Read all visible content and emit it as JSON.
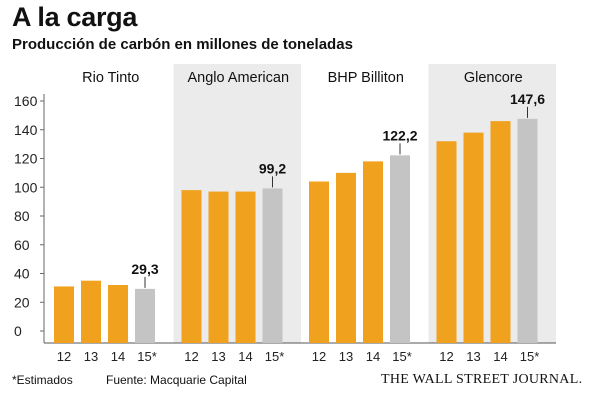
{
  "title": "A la carga",
  "subtitle": "Producción de carbón en millones de toneladas",
  "footnote": "*Estimados",
  "source": "Fuente: Macquarie Capital",
  "publisher": "THE WALL STREET JOURNAL.",
  "colors": {
    "actual": "#f0a11e",
    "estimate": "#c4c4c4",
    "panel_shade": "#ebebeb",
    "axis": "#666666"
  },
  "chart_data": {
    "type": "bar",
    "title": "Producción de carbón en millones de toneladas",
    "ylim": [
      0,
      160
    ],
    "yticks": [
      0,
      20,
      40,
      60,
      80,
      100,
      120,
      140,
      160
    ],
    "grid": false,
    "categories": [
      "12",
      "13",
      "14",
      "15*"
    ],
    "series": [
      {
        "name": "Rio Tinto",
        "values": [
          31,
          35,
          32,
          29.3
        ],
        "label": "29,3"
      },
      {
        "name": "Anglo American",
        "values": [
          98,
          97,
          97,
          99.2
        ],
        "label": "99,2"
      },
      {
        "name": "BHP Billiton",
        "values": [
          104,
          110,
          118,
          122.2
        ],
        "label": "122,2"
      },
      {
        "name": "Glencore",
        "values": [
          132,
          138,
          146,
          147.6
        ],
        "label": "147,6"
      }
    ]
  }
}
